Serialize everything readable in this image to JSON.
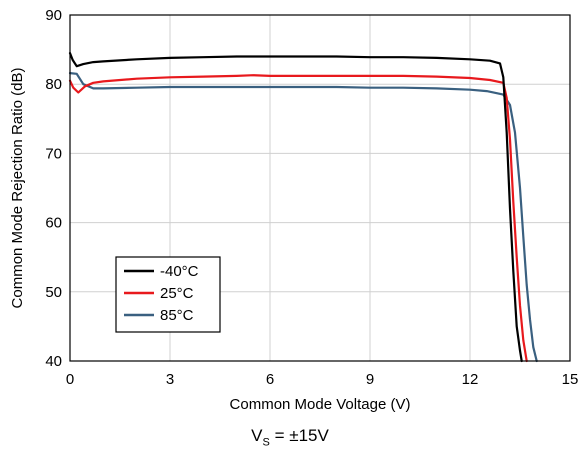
{
  "chart_data": {
    "type": "line",
    "xlabel": "Common Mode Voltage (V)",
    "ylabel": "Common Mode Rejection Ratio (dB)",
    "xlim": [
      0,
      15
    ],
    "ylim": [
      40,
      90
    ],
    "xticks": [
      0,
      3,
      6,
      9,
      12,
      15
    ],
    "yticks": [
      40,
      50,
      60,
      70,
      80,
      90
    ],
    "grid": true,
    "legend_position": "bottom-left",
    "series": [
      {
        "name": "-40°C",
        "color": "#000000",
        "x": [
          0.0,
          0.08,
          0.2,
          0.4,
          0.7,
          1.0,
          2.0,
          3.0,
          4.0,
          5.0,
          6.0,
          7.0,
          8.0,
          9.0,
          10.0,
          11.0,
          12.0,
          12.6,
          12.9,
          13.0,
          13.1,
          13.2,
          13.3,
          13.4,
          13.5,
          13.55
        ],
        "y": [
          84.5,
          83.5,
          82.6,
          82.9,
          83.2,
          83.3,
          83.6,
          83.8,
          83.9,
          84.0,
          84.0,
          84.0,
          84.0,
          83.9,
          83.9,
          83.8,
          83.6,
          83.4,
          83.0,
          81.0,
          73.0,
          62.0,
          53.0,
          45.0,
          41.5,
          40.0
        ]
      },
      {
        "name": "25°C",
        "color": "#e8191d",
        "x": [
          0.0,
          0.1,
          0.25,
          0.45,
          0.7,
          1.0,
          2.0,
          3.0,
          4.0,
          5.0,
          5.5,
          6.0,
          7.0,
          8.0,
          9.0,
          10.0,
          11.0,
          12.0,
          12.6,
          13.0,
          13.1,
          13.2,
          13.3,
          13.4,
          13.5,
          13.6,
          13.7
        ],
        "y": [
          80.5,
          79.5,
          78.8,
          79.7,
          80.2,
          80.4,
          80.8,
          81.0,
          81.1,
          81.2,
          81.3,
          81.2,
          81.2,
          81.2,
          81.2,
          81.2,
          81.1,
          80.9,
          80.6,
          80.2,
          78.0,
          72.0,
          63.0,
          55.0,
          48.0,
          43.0,
          40.0
        ]
      },
      {
        "name": "85°C",
        "color": "#3a6080",
        "x": [
          0.0,
          0.2,
          0.4,
          0.7,
          1.0,
          2.0,
          3.0,
          4.0,
          5.0,
          6.0,
          7.0,
          8.0,
          9.0,
          10.0,
          11.0,
          12.0,
          12.5,
          13.0,
          13.2,
          13.35,
          13.5,
          13.6,
          13.7,
          13.8,
          13.9,
          14.0
        ],
        "y": [
          81.6,
          81.5,
          80.0,
          79.4,
          79.4,
          79.5,
          79.6,
          79.6,
          79.6,
          79.6,
          79.6,
          79.6,
          79.5,
          79.5,
          79.4,
          79.2,
          79.0,
          78.5,
          77.0,
          73.0,
          65.0,
          58.0,
          51.0,
          46.0,
          42.0,
          40.0
        ]
      }
    ]
  },
  "caption": {
    "prefix": "V",
    "subscript": "S",
    "suffix": " = ±15V"
  }
}
